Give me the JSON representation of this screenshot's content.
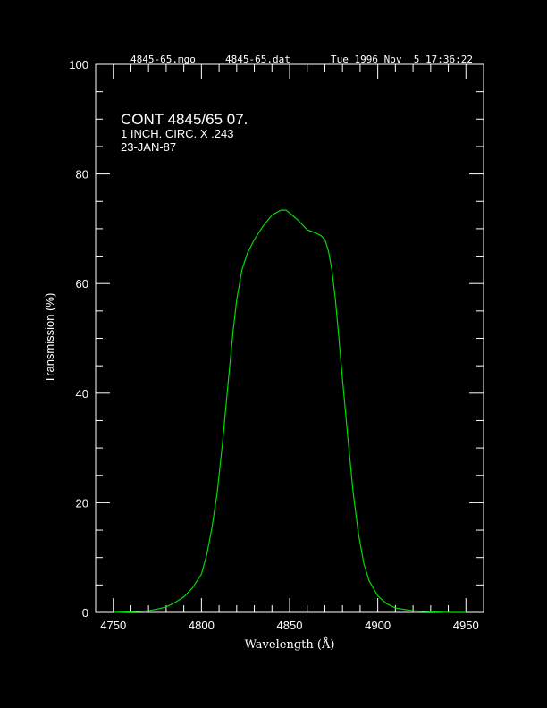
{
  "header": {
    "left": "4845-65.mgo",
    "middle": "4845-65.dat",
    "right": "Tue 1996 Nov  5 17:36:22"
  },
  "chart_data": {
    "type": "line",
    "title": "CONT 4845/65 07.",
    "subtitle_lines": [
      "1 INCH. CIRC. X .243",
      "23-JAN-87"
    ],
    "xlabel": "Wavelength (Å)",
    "ylabel": "Transmission (%)",
    "xlim": [
      4740,
      4960
    ],
    "ylim": [
      0,
      100
    ],
    "x_ticks": [
      4750,
      4800,
      4850,
      4900,
      4950
    ],
    "y_ticks": [
      0,
      20,
      40,
      60,
      80,
      100
    ],
    "x_minor_step": 10,
    "y_minor_step": 5,
    "grid": false,
    "line_color": "#00dd00",
    "series": [
      {
        "x": [
          4750,
          4760,
          4770,
          4775,
          4780,
          4785,
          4790,
          4795,
          4800,
          4803,
          4806,
          4809,
          4812,
          4815,
          4818,
          4820,
          4823,
          4826,
          4830,
          4835,
          4840,
          4845,
          4848,
          4851,
          4855,
          4860,
          4865,
          4868,
          4870,
          4872,
          4874,
          4876,
          4878,
          4880,
          4883,
          4886,
          4889,
          4892,
          4895,
          4900,
          4905,
          4910,
          4920,
          4930,
          4940,
          4950
        ],
        "y": [
          0.0,
          0.1,
          0.3,
          0.6,
          1.0,
          1.8,
          2.8,
          4.5,
          7.0,
          10.5,
          15.5,
          22.0,
          31.0,
          41.5,
          51.5,
          57.0,
          62.5,
          65.5,
          68.0,
          70.5,
          72.5,
          73.4,
          73.4,
          72.6,
          71.5,
          69.8,
          69.2,
          68.7,
          68.0,
          66.0,
          62.5,
          57.0,
          50.0,
          42.5,
          32.0,
          22.0,
          14.5,
          9.0,
          5.8,
          3.0,
          1.6,
          0.8,
          0.3,
          0.1,
          0.0,
          0.0
        ]
      }
    ]
  }
}
